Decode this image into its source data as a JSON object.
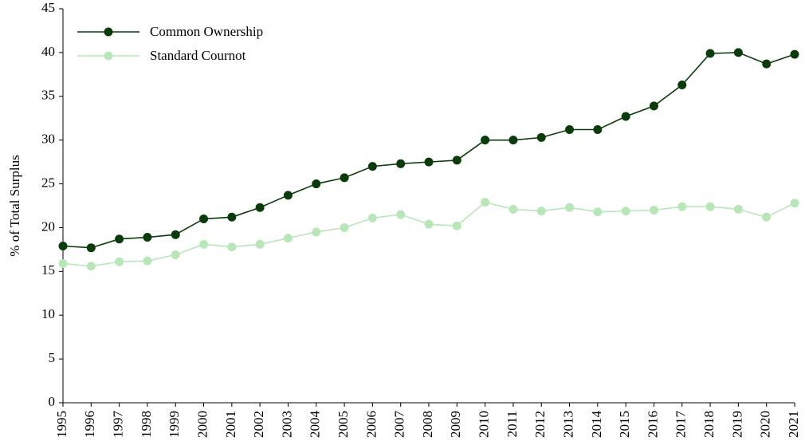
{
  "chart_data": {
    "type": "line",
    "ylabel": "% of Total Surplus",
    "x": [
      1995,
      1996,
      1997,
      1998,
      1999,
      2000,
      2001,
      2002,
      2003,
      2004,
      2005,
      2006,
      2007,
      2008,
      2009,
      2010,
      2011,
      2012,
      2013,
      2014,
      2015,
      2016,
      2017,
      2018,
      2019,
      2020,
      2021
    ],
    "xlim": [
      1995,
      2021
    ],
    "xticks": [
      1995,
      1996,
      1997,
      1998,
      1999,
      2000,
      2001,
      2002,
      2003,
      2004,
      2005,
      2006,
      2007,
      2008,
      2009,
      2010,
      2011,
      2012,
      2013,
      2014,
      2015,
      2016,
      2017,
      2018,
      2019,
      2020,
      2021
    ],
    "ylim": [
      0,
      45
    ],
    "yticks": [
      0,
      5,
      10,
      15,
      20,
      25,
      30,
      35,
      40,
      45
    ],
    "grid": false,
    "legend": "upper-left",
    "series": [
      {
        "name": "Common Ownership",
        "color": "#0b3b0b",
        "values": [
          17.9,
          17.7,
          18.7,
          18.9,
          19.2,
          21.0,
          21.2,
          22.3,
          23.7,
          25.0,
          25.7,
          27.0,
          27.3,
          27.5,
          27.7,
          30.0,
          30.0,
          30.3,
          31.2,
          31.2,
          32.7,
          33.9,
          36.3,
          39.9,
          40.0,
          38.7,
          39.8
        ]
      },
      {
        "name": "Standard Cournot",
        "color": "#b9e6b9",
        "values": [
          15.9,
          15.6,
          16.1,
          16.2,
          16.9,
          18.1,
          17.8,
          18.1,
          18.8,
          19.5,
          20.0,
          21.1,
          21.5,
          20.4,
          20.2,
          22.9,
          22.1,
          21.9,
          22.3,
          21.8,
          21.9,
          22.0,
          22.4,
          22.4,
          22.1,
          21.2,
          22.8
        ]
      }
    ]
  }
}
